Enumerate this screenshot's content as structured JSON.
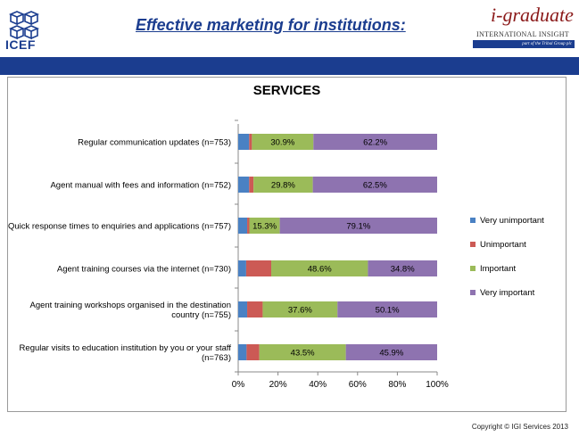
{
  "header": {
    "logo_text": "ICEF",
    "title": "Effective marketing for institutions:",
    "brand_name": "i-graduate",
    "brand_tagline": "INTERNATIONAL INSIGHT",
    "brand_sub": "part of the Tribal Group plc"
  },
  "footer": {
    "copyright": "Copyright © IGI Services 2013"
  },
  "colors": {
    "band": "#1b3d8f",
    "very_unimportant": "#4a81c3",
    "unimportant": "#cc5a55",
    "important": "#9bbb59",
    "very_important": "#8e73b0"
  },
  "chart_data": {
    "type": "bar",
    "orientation": "horizontal",
    "stacked": "percent",
    "title": "SERVICES",
    "xlim": [
      0,
      100
    ],
    "xticks": [
      "0%",
      "20%",
      "40%",
      "60%",
      "80%",
      "100%"
    ],
    "grid": false,
    "legend_position": "right",
    "categories": [
      [
        "Regular communication updates (n=753)"
      ],
      [
        "Agent manual with fees and information (n=752)"
      ],
      [
        "Quick response times to enquiries and applications (n=757)"
      ],
      [
        "Agent training courses via the internet (n=730)"
      ],
      [
        "Agent training workshops organised in the destination",
        "country (n=755)"
      ],
      [
        "Regular visits to education institution by you or your staff",
        "(n=763)"
      ]
    ],
    "series": [
      {
        "name": "Very unimportant",
        "color": "#4a81c3",
        "values": [
          5.5,
          5.5,
          4.5,
          4.0,
          4.5,
          4.2
        ]
      },
      {
        "name": "Unimportant",
        "color": "#cc5a55",
        "values": [
          1.4,
          2.2,
          1.1,
          12.6,
          7.8,
          6.4
        ]
      },
      {
        "name": "Important",
        "color": "#9bbb59",
        "values": [
          30.9,
          29.8,
          15.3,
          48.6,
          37.6,
          43.5
        ]
      },
      {
        "name": "Very important",
        "color": "#8e73b0",
        "values": [
          62.2,
          62.5,
          79.1,
          34.8,
          50.1,
          45.9
        ]
      }
    ],
    "data_labels": [
      [
        "",
        "",
        "30.9%",
        "62.2%"
      ],
      [
        "",
        "",
        "29.8%",
        "62.5%"
      ],
      [
        "",
        "",
        "15.3%",
        "79.1%"
      ],
      [
        "",
        "",
        "48.6%",
        "34.8%"
      ],
      [
        "",
        "",
        "37.6%",
        "50.1%"
      ],
      [
        "",
        "",
        "43.5%",
        "45.9%"
      ]
    ]
  }
}
